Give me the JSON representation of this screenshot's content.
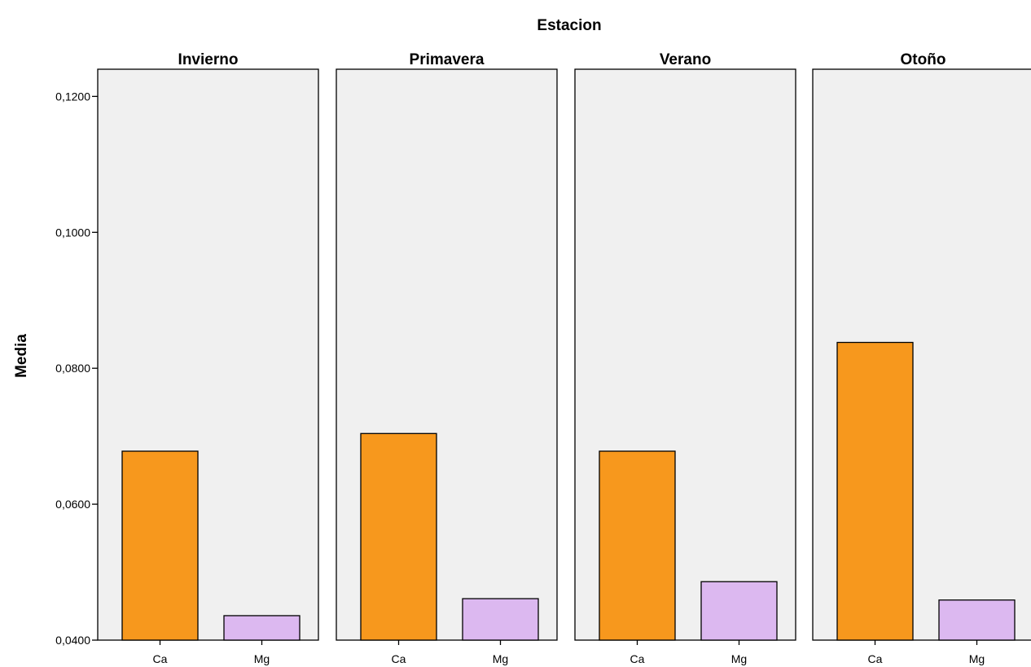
{
  "chart_data": {
    "type": "bar",
    "title": "Estacion",
    "ylabel": "Media",
    "xlabel": "",
    "ylim": [
      0.04,
      0.124
    ],
    "yticks": [
      {
        "value": 0.04,
        "label": "0,0400"
      },
      {
        "value": 0.06,
        "label": "0,0600"
      },
      {
        "value": 0.08,
        "label": "0,0800"
      },
      {
        "value": 0.1,
        "label": "0,1000"
      },
      {
        "value": 0.12,
        "label": "0,1200"
      }
    ],
    "grid": false,
    "categories": [
      "Ca",
      "Mg"
    ],
    "colors": {
      "Ca": "#f7981d",
      "Mg": "#dcb8f0"
    },
    "panels": [
      {
        "name": "Invierno",
        "values": [
          0.0678,
          0.0436
        ]
      },
      {
        "name": "Primavera",
        "values": [
          0.0704,
          0.0461
        ]
      },
      {
        "name": "Verano",
        "values": [
          0.0678,
          0.0486
        ]
      },
      {
        "name": "Otoño",
        "values": [
          0.0838,
          0.0459
        ]
      }
    ]
  }
}
